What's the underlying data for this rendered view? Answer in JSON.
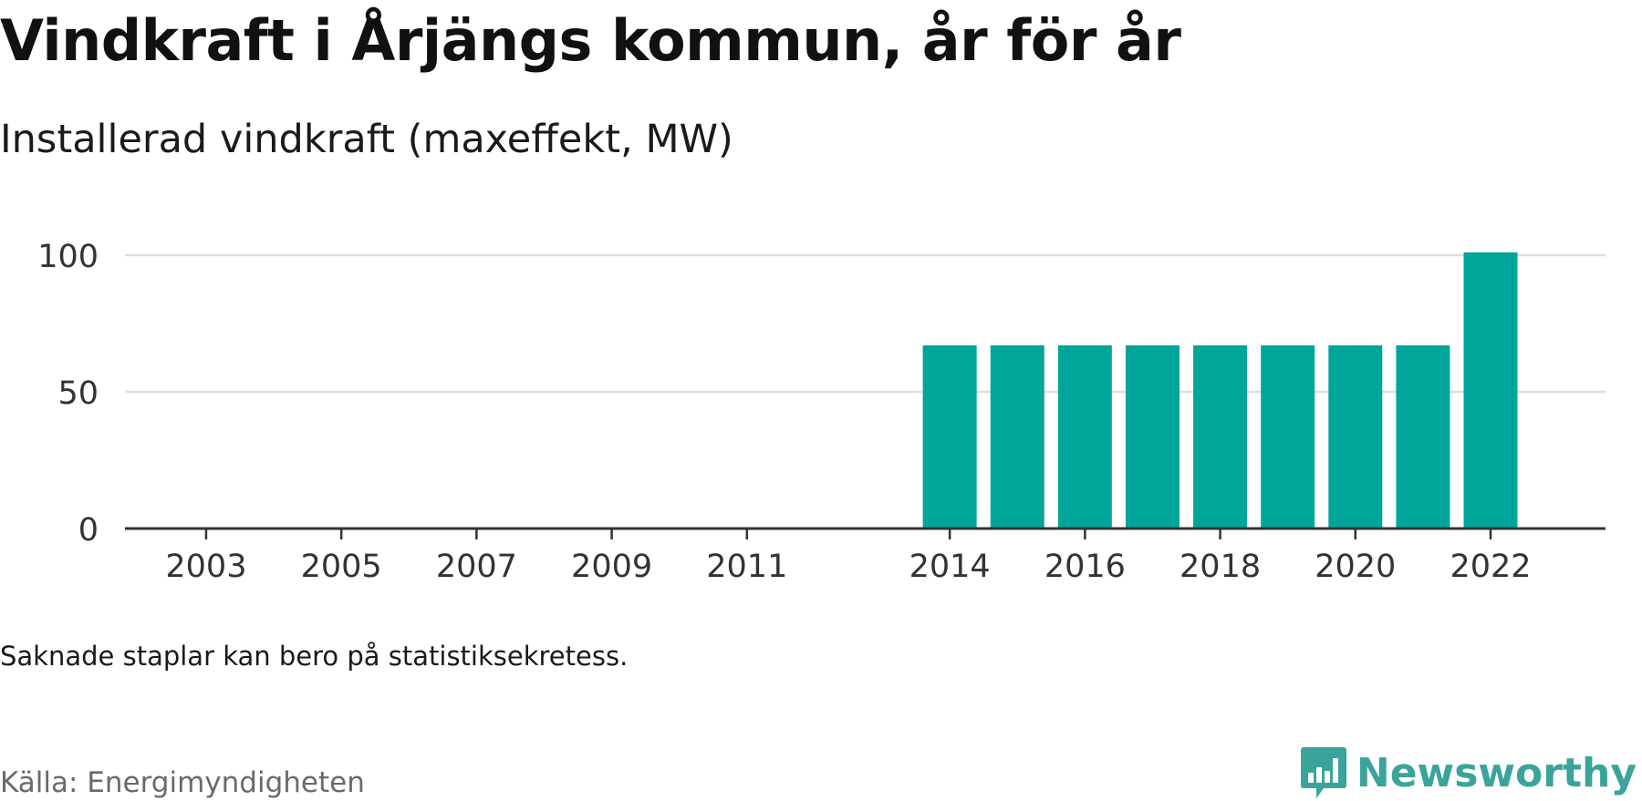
{
  "header": {
    "title": "Vindkraft i Årjängs kommun, år för år",
    "subtitle": "Installerad vindkraft (maxeffekt, MW)"
  },
  "footer": {
    "note": "Saknade staplar kan bero på statistiksekretess.",
    "source": "Källa: Energimyndigheten",
    "logo_text": "Newsworthy"
  },
  "colors": {
    "bar": "#00a59a",
    "grid": "#dddddd",
    "axis": "#333333",
    "brand": "#3aa49b"
  },
  "chart_data": {
    "type": "bar",
    "title": "Vindkraft i Årjängs kommun, år för år",
    "subtitle": "Installerad vindkraft (maxeffekt, MW)",
    "xlabel": "",
    "ylabel": "",
    "ylim": [
      0,
      110
    ],
    "yticks": [
      0,
      50,
      100
    ],
    "grid": true,
    "xlim": [
      2001.8,
      2023.7
    ],
    "xtick_labels": [
      "2003",
      "2005",
      "2007",
      "2009",
      "2011",
      "2014",
      "2016",
      "2018",
      "2020",
      "2022"
    ],
    "categories": [
      "2014",
      "2015",
      "2016",
      "2017",
      "2018",
      "2019",
      "2020",
      "2021",
      "2022"
    ],
    "values": [
      67,
      67,
      67,
      67,
      67,
      67,
      67,
      67,
      101
    ]
  }
}
